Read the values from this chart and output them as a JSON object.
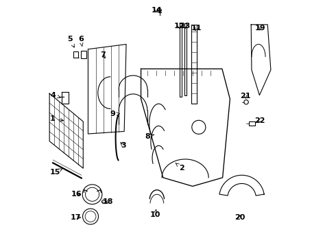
{
  "bg_color": "#ffffff",
  "line_color": "#000000",
  "label_color": "#000000",
  "font_size": 8,
  "label_positions": {
    "1": [
      0.03,
      0.48,
      0.085,
      0.49
    ],
    "2": [
      0.555,
      0.68,
      0.53,
      0.66
    ],
    "3": [
      0.318,
      0.588,
      0.3,
      0.57
    ],
    "4": [
      0.032,
      0.385,
      0.065,
      0.395
    ],
    "5": [
      0.102,
      0.158,
      0.12,
      0.193
    ],
    "6": [
      0.145,
      0.158,
      0.153,
      0.195
    ],
    "7": [
      0.235,
      0.222,
      0.252,
      0.242
    ],
    "8": [
      0.418,
      0.552,
      0.452,
      0.543
    ],
    "9": [
      0.275,
      0.462,
      0.306,
      0.46
    ],
    "10": [
      0.448,
      0.872,
      0.452,
      0.848
    ],
    "11": [
      0.615,
      0.112,
      0.606,
      0.132
    ],
    "12": [
      0.545,
      0.105,
      0.55,
      0.123
    ],
    "13": [
      0.572,
      0.105,
      0.57,
      0.122
    ],
    "14": [
      0.453,
      0.04,
      0.461,
      0.057
    ],
    "15": [
      0.042,
      0.698,
      0.072,
      0.683
    ],
    "16": [
      0.128,
      0.788,
      0.155,
      0.788
    ],
    "17": [
      0.126,
      0.882,
      0.155,
      0.882
    ],
    "18": [
      0.256,
      0.818,
      0.245,
      0.82
    ],
    "19": [
      0.875,
      0.112,
      0.872,
      0.13
    ],
    "20": [
      0.792,
      0.882,
      0.795,
      0.863
    ],
    "21": [
      0.815,
      0.388,
      0.818,
      0.408
    ],
    "22": [
      0.873,
      0.488,
      0.856,
      0.498
    ]
  }
}
